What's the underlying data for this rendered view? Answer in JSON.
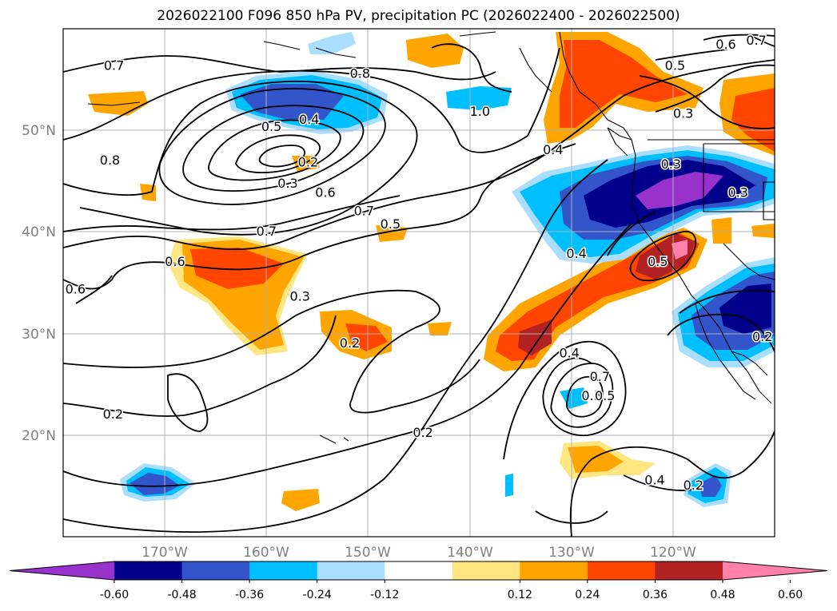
{
  "title": "2026022100 F096 850 hPa PV, precipitation PC (2026022400 - 2026022500)",
  "axes": {
    "lon_labels": [
      "170°W",
      "160°W",
      "150°W",
      "140°W",
      "130°W",
      "120°W"
    ],
    "lat_labels": [
      "50°N",
      "40°N",
      "30°N",
      "20°N"
    ],
    "lon_range": [
      -180,
      -110
    ],
    "lat_range": [
      10,
      60
    ]
  },
  "colorbar": {
    "ticks": [
      "-0.60",
      "-0.48",
      "-0.36",
      "-0.24",
      "-0.12",
      "0.12",
      "0.24",
      "0.36",
      "0.48",
      "0.60"
    ],
    "colors": [
      "#9932cc",
      "#00008b",
      "#3355cc",
      "#00bfff",
      "#aadeff",
      "#ffffff",
      "#ffe680",
      "#ffa500",
      "#ff4500",
      "#b22222",
      "#ff80a8"
    ]
  },
  "contour_labels": [
    {
      "text": "0.7",
      "lon": -175.0,
      "lat": 56.3
    },
    {
      "text": "0.8",
      "lon": -150.8,
      "lat": 55.5
    },
    {
      "text": "0.5",
      "lon": -159.5,
      "lat": 50.3
    },
    {
      "text": "0.4",
      "lon": -155.8,
      "lat": 51.0
    },
    {
      "text": "1.0",
      "lon": -139.0,
      "lat": 51.8
    },
    {
      "text": "0.6",
      "lon": -114.8,
      "lat": 58.4
    },
    {
      "text": "0.7",
      "lon": -111.8,
      "lat": 58.8
    },
    {
      "text": "0.5",
      "lon": -119.8,
      "lat": 56.3
    },
    {
      "text": "0.3",
      "lon": -119.0,
      "lat": 51.6
    },
    {
      "text": "0.4",
      "lon": -131.8,
      "lat": 48.0
    },
    {
      "text": "0.8",
      "lon": -175.4,
      "lat": 47.0
    },
    {
      "text": "0.2",
      "lon": -155.9,
      "lat": 46.8
    },
    {
      "text": "0.3",
      "lon": -120.2,
      "lat": 46.6
    },
    {
      "text": "0.3",
      "lon": -157.9,
      "lat": 44.7
    },
    {
      "text": "0.6",
      "lon": -154.2,
      "lat": 43.8
    },
    {
      "text": "0.7",
      "lon": -150.4,
      "lat": 42.0
    },
    {
      "text": "0.3",
      "lon": -113.6,
      "lat": 43.8
    },
    {
      "text": "0.7",
      "lon": -160.0,
      "lat": 40.0
    },
    {
      "text": "0.5",
      "lon": -147.8,
      "lat": 40.7
    },
    {
      "text": "0.6",
      "lon": -169.0,
      "lat": 37.0
    },
    {
      "text": "0.4",
      "lon": -129.5,
      "lat": 37.8
    },
    {
      "text": "0.5",
      "lon": -121.5,
      "lat": 37.0
    },
    {
      "text": "0.6",
      "lon": -178.8,
      "lat": 34.3
    },
    {
      "text": "0.3",
      "lon": -156.7,
      "lat": 33.6
    },
    {
      "text": "0.2",
      "lon": -151.8,
      "lat": 29.0
    },
    {
      "text": "0.4",
      "lon": -130.2,
      "lat": 28.0
    },
    {
      "text": "0.2",
      "lon": -111.2,
      "lat": 29.6
    },
    {
      "text": "0.7",
      "lon": -127.2,
      "lat": 25.7
    },
    {
      "text": "0.5",
      "lon": -128.0,
      "lat": 23.8
    },
    {
      "text": "0.5",
      "lon": -126.7,
      "lat": 23.8
    },
    {
      "text": "0.2",
      "lon": -175.1,
      "lat": 22.0
    },
    {
      "text": "0.2",
      "lon": -144.6,
      "lat": 20.2
    },
    {
      "text": "0.4",
      "lon": -121.8,
      "lat": 15.5
    },
    {
      "text": "0.2",
      "lon": -118.0,
      "lat": 15.0
    }
  ]
}
